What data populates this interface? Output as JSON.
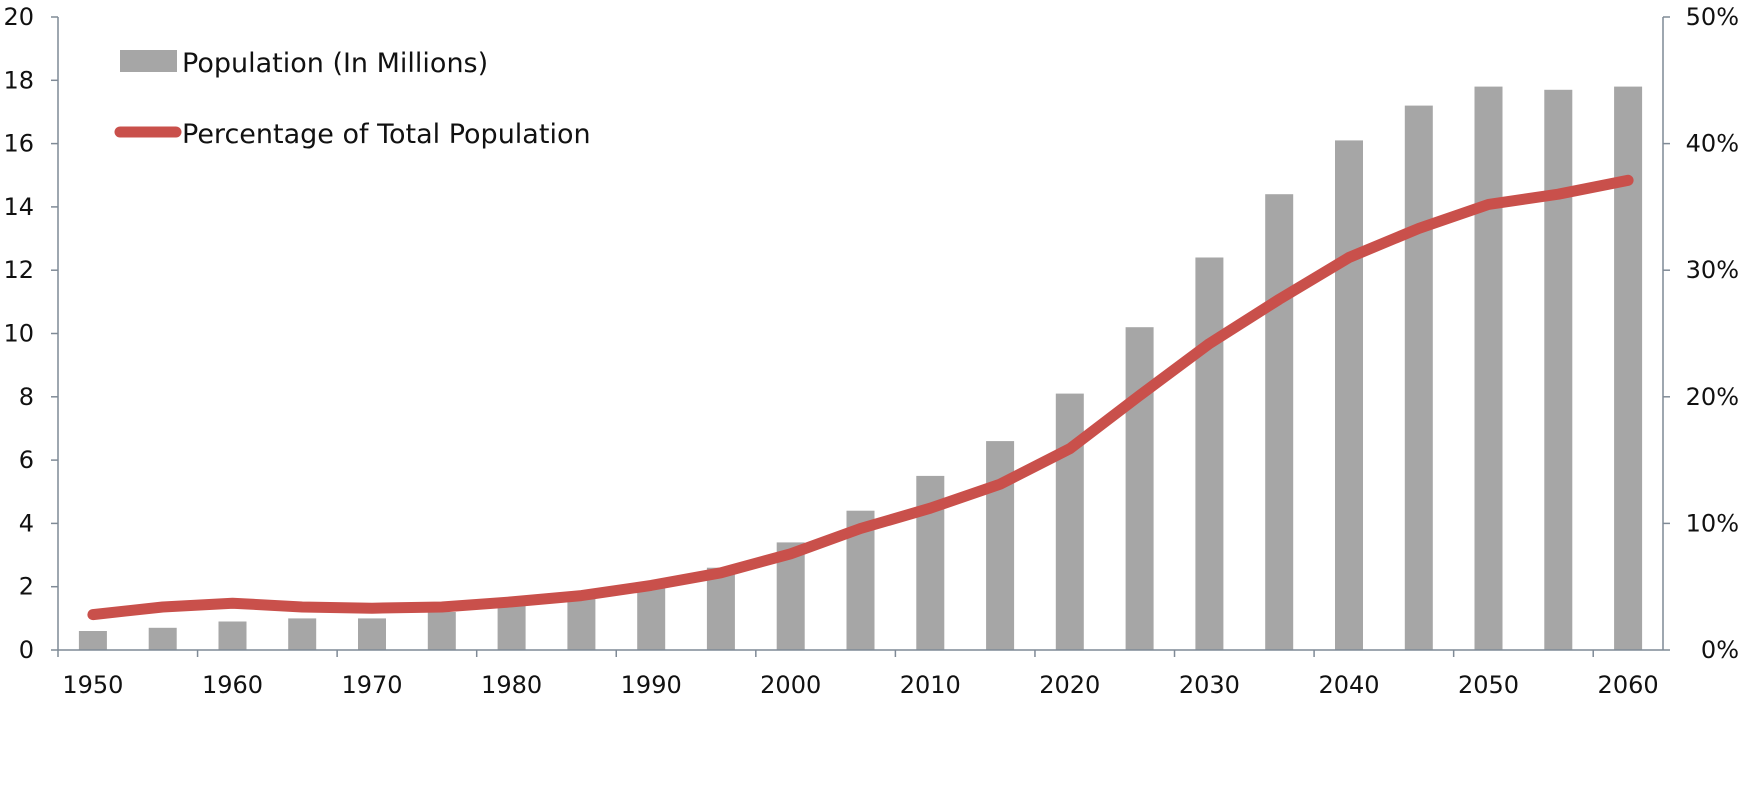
{
  "chart_data": {
    "type": "bar+line",
    "categories": [
      "1950",
      "1955",
      "1960",
      "1965",
      "1970",
      "1975",
      "1980",
      "1985",
      "1990",
      "1995",
      "2000",
      "2005",
      "2010",
      "2015",
      "2020",
      "2025",
      "2030",
      "2035",
      "2040",
      "2045",
      "2050",
      "2055",
      "2060"
    ],
    "x_tick_labels": [
      "1950",
      "1960",
      "1970",
      "1980",
      "1990",
      "2000",
      "2010",
      "2020",
      "2030",
      "2040",
      "2050",
      "2060"
    ],
    "series": [
      {
        "name": "Population (In Millions)",
        "type": "bar",
        "axis": "left",
        "color": "#a6a6a6",
        "values": [
          0.6,
          0.7,
          0.9,
          1.0,
          1.0,
          1.2,
          1.5,
          1.7,
          2.0,
          2.6,
          3.4,
          4.4,
          5.5,
          6.6,
          8.1,
          10.2,
          12.4,
          14.4,
          16.1,
          17.2,
          17.8,
          17.7,
          17.8
        ]
      },
      {
        "name": "Percentage of Total Population",
        "type": "line",
        "axis": "right",
        "color": "#c9504b",
        "values": [
          2.8,
          3.4,
          3.7,
          3.4,
          3.3,
          3.4,
          3.8,
          4.3,
          5.1,
          6.1,
          7.6,
          9.6,
          11.2,
          13.1,
          15.9,
          20.1,
          24.2,
          27.7,
          31.0,
          33.3,
          35.2,
          36.0,
          37.1
        ]
      }
    ],
    "y_left": {
      "ylim": [
        0,
        20
      ],
      "ticks": [
        "0",
        "2",
        "4",
        "6",
        "8",
        "10",
        "12",
        "14",
        "16",
        "18",
        "20"
      ]
    },
    "y_right": {
      "ylim": [
        0,
        50
      ],
      "ticks": [
        "0%",
        "10%",
        "20%",
        "30%",
        "40%",
        "50%"
      ]
    },
    "legend_position": "top-left",
    "grid": false,
    "title": "",
    "xlabel": "",
    "ylabel": ""
  }
}
